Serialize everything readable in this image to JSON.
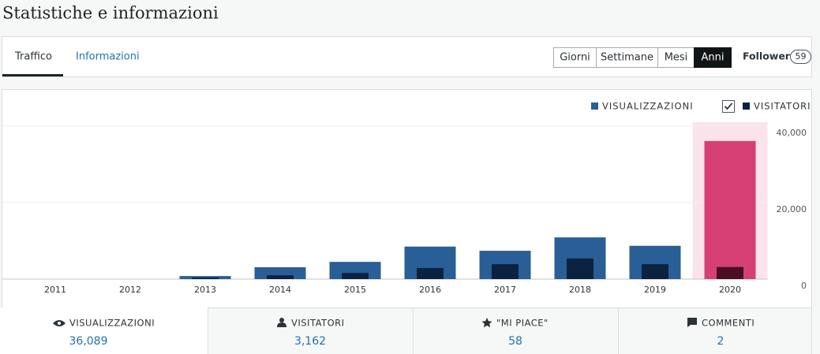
{
  "header": {
    "title": "Statistiche e informazioni"
  },
  "tabs": [
    "Traffico",
    "Informazioni"
  ],
  "periods": [
    "Giorni",
    "Settimane",
    "Mesi",
    "Anni"
  ],
  "follower": {
    "label": "Follower",
    "count": 59
  },
  "summary": [
    {
      "label": "VISUALIZZAZIONI",
      "value": "36,089"
    },
    {
      "label": "VISITATORI",
      "value": "3,162"
    },
    {
      "label": "\"MI PIACE\"",
      "value": "58"
    },
    {
      "label": "COMMENTI",
      "value": "2"
    }
  ],
  "chart_data": {
    "type": "bar",
    "categories": [
      "2011",
      "2012",
      "2013",
      "2014",
      "2015",
      "2016",
      "2017",
      "2018",
      "2019",
      "2020"
    ],
    "series": [
      {
        "name": "VISUALIZZAZIONI",
        "color": "#2a5e96",
        "selected_color": "#d63f73",
        "values": [
          0,
          0,
          800,
          3100,
          4500,
          8500,
          7400,
          10900,
          8700,
          36089
        ]
      },
      {
        "name": "VISITATORI",
        "color": "#0b2340",
        "selected_color": "#4a0d22",
        "values": [
          0,
          0,
          400,
          1000,
          1600,
          2900,
          3900,
          5400,
          3900,
          3162
        ]
      }
    ],
    "selected": 9,
    "ylim": [
      0,
      41000
    ],
    "yticks": [
      0,
      {
        "value": 20000,
        "label": "20,000"
      },
      {
        "value": 40000,
        "label": "40,000"
      }
    ],
    "grid": true
  }
}
